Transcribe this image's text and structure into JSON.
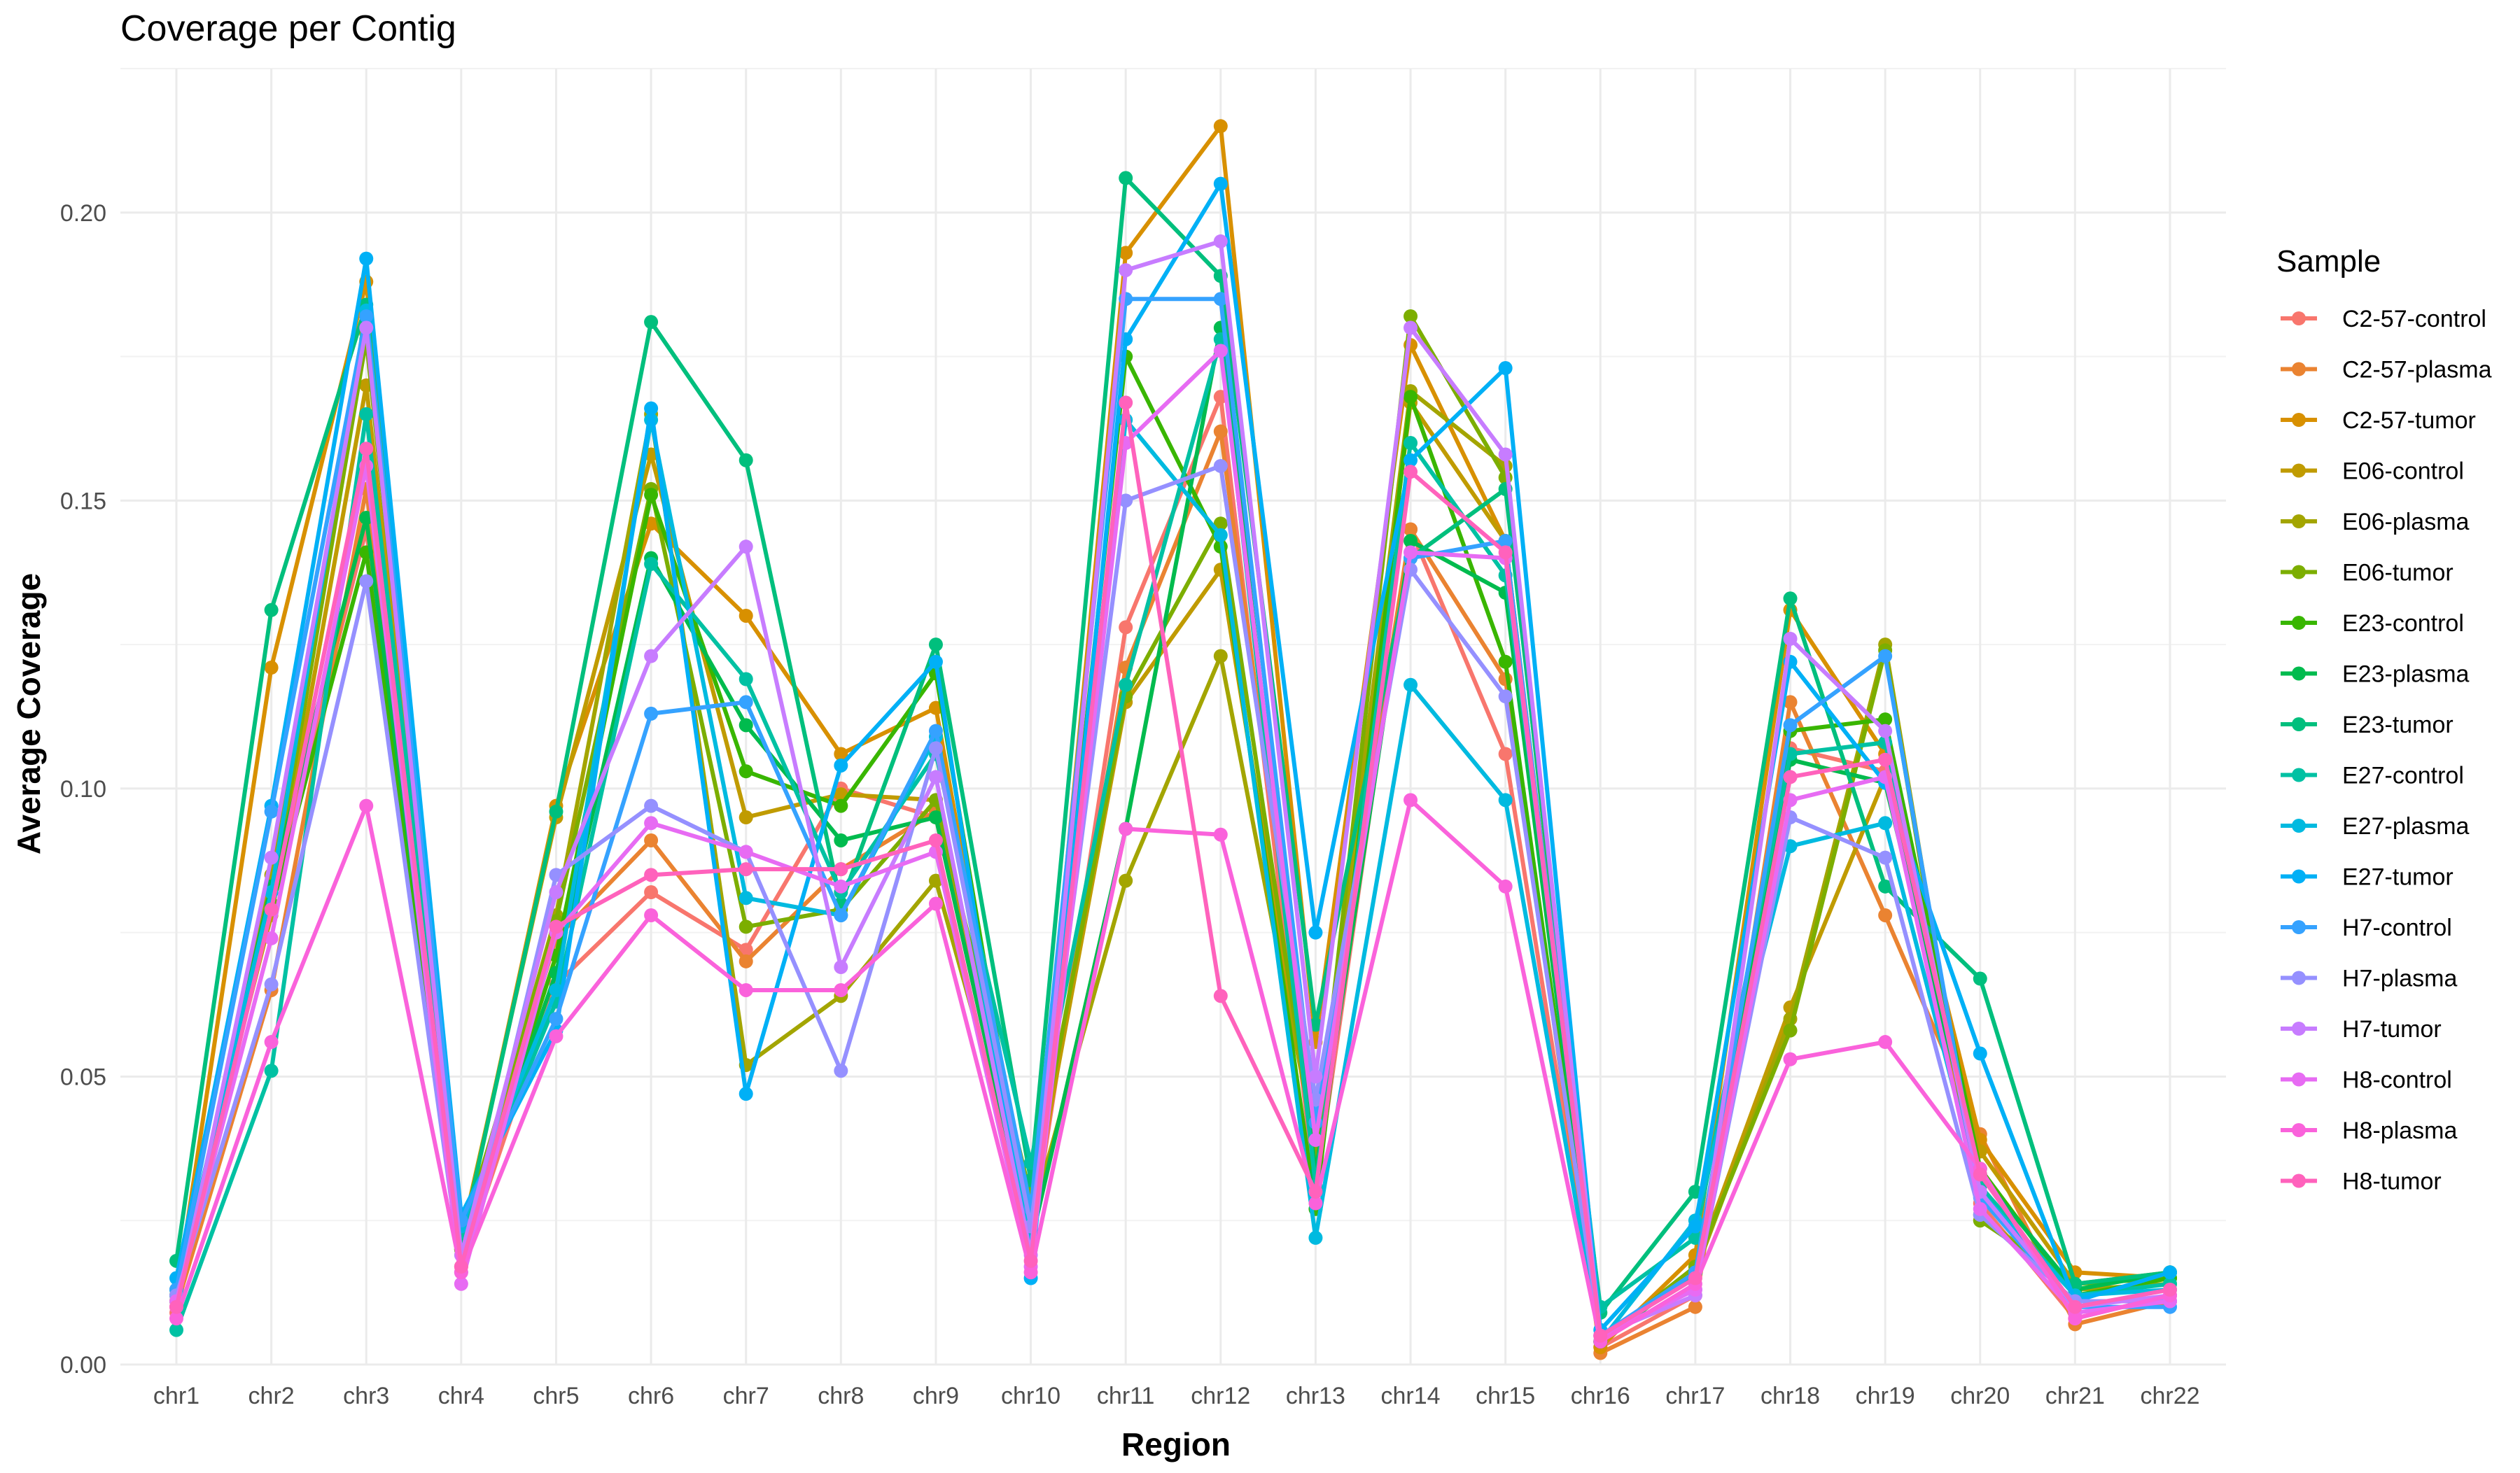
{
  "chart_data": {
    "type": "line",
    "title": "Coverage per Contig",
    "xlabel": "Region",
    "ylabel": "Average Coverage",
    "ylim": [
      0,
      0.225
    ],
    "yticks": [
      0.0,
      0.05,
      0.1,
      0.15,
      0.2
    ],
    "ytick_labels": [
      "0.00",
      "0.05",
      "0.10",
      "0.15",
      "0.20"
    ],
    "grid": true,
    "legend_title": "Sample",
    "legend_position": "right",
    "categories": [
      "chr1",
      "chr2",
      "chr3",
      "chr4",
      "chr5",
      "chr6",
      "chr7",
      "chr8",
      "chr9",
      "chr10",
      "chr11",
      "chr12",
      "chr13",
      "chr14",
      "chr15",
      "chr16",
      "chr17",
      "chr18",
      "chr19",
      "chr20",
      "chr21",
      "chr22"
    ],
    "series": [
      {
        "name": "C2-57-control",
        "color": "#F8766D",
        "values": [
          0.009,
          0.08,
          0.145,
          0.017,
          0.066,
          0.082,
          0.072,
          0.1,
          0.095,
          0.021,
          0.128,
          0.168,
          0.03,
          0.145,
          0.106,
          0.003,
          0.012,
          0.107,
          0.103,
          0.028,
          0.008,
          0.012
        ]
      },
      {
        "name": "C2-57-plasma",
        "color": "#EA8331",
        "values": [
          0.01,
          0.065,
          0.152,
          0.02,
          0.074,
          0.091,
          0.07,
          0.086,
          0.096,
          0.024,
          0.121,
          0.162,
          0.041,
          0.145,
          0.119,
          0.002,
          0.01,
          0.115,
          0.078,
          0.04,
          0.007,
          0.011
        ]
      },
      {
        "name": "C2-57-tumor",
        "color": "#D89000",
        "values": [
          0.012,
          0.121,
          0.188,
          0.021,
          0.097,
          0.146,
          0.13,
          0.106,
          0.114,
          0.022,
          0.193,
          0.215,
          0.056,
          0.177,
          0.143,
          0.003,
          0.019,
          0.131,
          0.106,
          0.039,
          0.016,
          0.015
        ]
      },
      {
        "name": "E06-control",
        "color": "#C09B00",
        "values": [
          0.013,
          0.078,
          0.17,
          0.022,
          0.095,
          0.158,
          0.095,
          0.099,
          0.098,
          0.026,
          0.115,
          0.138,
          0.036,
          0.167,
          0.143,
          0.004,
          0.017,
          0.062,
          0.102,
          0.037,
          0.014,
          0.016
        ]
      },
      {
        "name": "E06-plasma",
        "color": "#A3A500",
        "values": [
          0.011,
          0.085,
          0.179,
          0.02,
          0.078,
          0.165,
          0.052,
          0.064,
          0.084,
          0.025,
          0.084,
          0.123,
          0.038,
          0.169,
          0.156,
          0.004,
          0.016,
          0.06,
          0.125,
          0.026,
          0.013,
          0.014
        ]
      },
      {
        "name": "E06-tumor",
        "color": "#7CAE00",
        "values": [
          0.012,
          0.08,
          0.178,
          0.022,
          0.077,
          0.152,
          0.076,
          0.079,
          0.098,
          0.029,
          0.116,
          0.146,
          0.036,
          0.182,
          0.154,
          0.004,
          0.017,
          0.058,
          0.124,
          0.025,
          0.014,
          0.015
        ]
      },
      {
        "name": "E23-control",
        "color": "#39B600",
        "values": [
          0.011,
          0.079,
          0.141,
          0.02,
          0.071,
          0.151,
          0.103,
          0.097,
          0.12,
          0.022,
          0.175,
          0.142,
          0.027,
          0.168,
          0.122,
          0.004,
          0.016,
          0.11,
          0.112,
          0.034,
          0.012,
          0.015
        ]
      },
      {
        "name": "E23-plasma",
        "color": "#00BB4E",
        "values": [
          0.012,
          0.083,
          0.147,
          0.021,
          0.068,
          0.14,
          0.111,
          0.091,
          0.095,
          0.021,
          0.093,
          0.18,
          0.033,
          0.143,
          0.134,
          0.004,
          0.016,
          0.105,
          0.101,
          0.033,
          0.013,
          0.016
        ]
      },
      {
        "name": "E23-tumor",
        "color": "#00BF7D",
        "values": [
          0.018,
          0.131,
          0.184,
          0.021,
          0.096,
          0.181,
          0.157,
          0.08,
          0.125,
          0.032,
          0.206,
          0.189,
          0.059,
          0.14,
          0.152,
          0.009,
          0.03,
          0.133,
          0.083,
          0.067,
          0.014,
          0.016
        ]
      },
      {
        "name": "E27-control",
        "color": "#00C1A3",
        "values": [
          0.006,
          0.051,
          0.165,
          0.023,
          0.063,
          0.139,
          0.119,
          0.082,
          0.106,
          0.035,
          0.118,
          0.178,
          0.031,
          0.16,
          0.137,
          0.01,
          0.022,
          0.106,
          0.108,
          0.031,
          0.012,
          0.014
        ]
      },
      {
        "name": "E27-plasma",
        "color": "#00BAE0",
        "values": [
          0.013,
          0.082,
          0.183,
          0.024,
          0.065,
          0.164,
          0.081,
          0.078,
          0.109,
          0.02,
          0.164,
          0.144,
          0.022,
          0.118,
          0.098,
          0.004,
          0.025,
          0.09,
          0.094,
          0.03,
          0.012,
          0.013
        ]
      },
      {
        "name": "E27-tumor",
        "color": "#00B0F6",
        "values": [
          0.015,
          0.097,
          0.192,
          0.026,
          0.058,
          0.166,
          0.047,
          0.104,
          0.122,
          0.015,
          0.178,
          0.205,
          0.075,
          0.157,
          0.173,
          0.006,
          0.024,
          0.122,
          0.101,
          0.054,
          0.011,
          0.016
        ]
      },
      {
        "name": "H7-control",
        "color": "#35A2FF",
        "values": [
          0.013,
          0.096,
          0.182,
          0.025,
          0.06,
          0.113,
          0.115,
          0.078,
          0.11,
          0.027,
          0.185,
          0.185,
          0.042,
          0.14,
          0.143,
          0.005,
          0.016,
          0.111,
          0.123,
          0.029,
          0.01,
          0.01
        ]
      },
      {
        "name": "H7-plasma",
        "color": "#9590FF",
        "values": [
          0.012,
          0.066,
          0.136,
          0.016,
          0.085,
          0.097,
          0.089,
          0.051,
          0.107,
          0.024,
          0.15,
          0.156,
          0.046,
          0.138,
          0.116,
          0.005,
          0.013,
          0.095,
          0.088,
          0.026,
          0.011,
          0.011
        ]
      },
      {
        "name": "H7-tumor",
        "color": "#C77CFF",
        "values": [
          0.01,
          0.088,
          0.18,
          0.019,
          0.082,
          0.123,
          0.142,
          0.069,
          0.102,
          0.019,
          0.19,
          0.195,
          0.05,
          0.18,
          0.158,
          0.005,
          0.012,
          0.126,
          0.11,
          0.03,
          0.01,
          0.012
        ]
      },
      {
        "name": "H8-control",
        "color": "#E76BF3",
        "values": [
          0.011,
          0.074,
          0.156,
          0.014,
          0.075,
          0.094,
          0.089,
          0.083,
          0.089,
          0.017,
          0.16,
          0.176,
          0.039,
          0.141,
          0.14,
          0.005,
          0.013,
          0.098,
          0.102,
          0.027,
          0.009,
          0.011
        ]
      },
      {
        "name": "H8-plasma",
        "color": "#FA62DB",
        "values": [
          0.008,
          0.056,
          0.097,
          0.016,
          0.057,
          0.078,
          0.065,
          0.065,
          0.08,
          0.016,
          0.093,
          0.092,
          0.028,
          0.098,
          0.083,
          0.004,
          0.014,
          0.053,
          0.056,
          0.034,
          0.008,
          0.012
        ]
      },
      {
        "name": "H8-tumor",
        "color": "#FF62BC",
        "values": [
          0.01,
          0.079,
          0.159,
          0.017,
          0.076,
          0.085,
          0.086,
          0.086,
          0.091,
          0.018,
          0.167,
          0.064,
          0.03,
          0.155,
          0.141,
          0.005,
          0.015,
          0.102,
          0.105,
          0.033,
          0.01,
          0.013
        ]
      }
    ]
  }
}
